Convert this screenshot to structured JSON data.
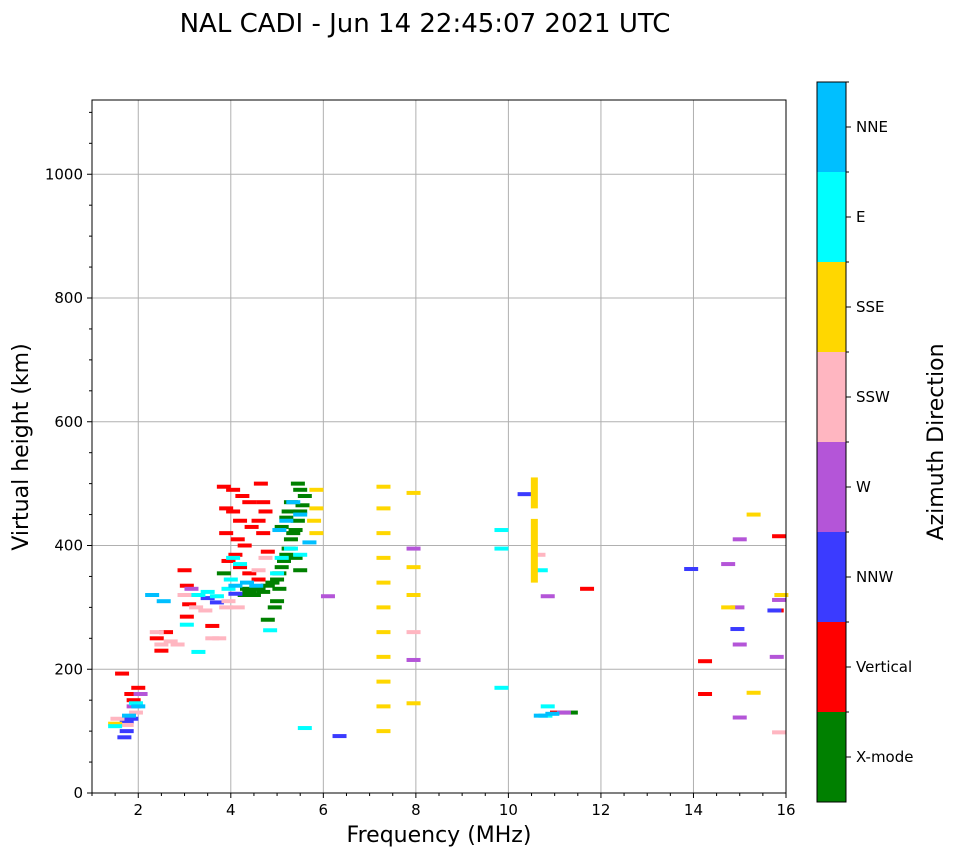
{
  "chart_data": {
    "type": "scatter",
    "title": "NAL CADI - Jun 14 22:45:07 2021 UTC",
    "xlabel": "Frequency (MHz)",
    "ylabel": "Virtual height (km)",
    "xlim": [
      1,
      16
    ],
    "ylim": [
      0,
      1120
    ],
    "xticks": [
      2,
      4,
      6,
      8,
      10,
      12,
      14,
      16
    ],
    "yticks": [
      0,
      200,
      400,
      600,
      800,
      1000
    ],
    "grid": true,
    "colorbar": {
      "label": "Azimuth Direction",
      "categories": [
        {
          "name": "X-mode",
          "color": "#008000"
        },
        {
          "name": "Vertical",
          "color": "#ff0000"
        },
        {
          "name": "NNW",
          "color": "#3b3bff"
        },
        {
          "name": "W",
          "color": "#b455d8"
        },
        {
          "name": "SSW",
          "color": "#ffb6c1"
        },
        {
          "name": "SSE",
          "color": "#ffd700"
        },
        {
          "name": "E",
          "color": "#00ffff"
        },
        {
          "name": "NNE",
          "color": "#00bfff"
        }
      ]
    },
    "series": [
      {
        "name": "X-mode",
        "points": [
          [
            4.3,
            320
          ],
          [
            4.35,
            330
          ],
          [
            4.4,
            325
          ],
          [
            4.5,
            320
          ],
          [
            4.6,
            330
          ],
          [
            4.7,
            325
          ],
          [
            4.8,
            335
          ],
          [
            4.9,
            340
          ],
          [
            5.0,
            345
          ],
          [
            5.05,
            355
          ],
          [
            5.1,
            365
          ],
          [
            5.15,
            375
          ],
          [
            5.2,
            385
          ],
          [
            5.25,
            395
          ],
          [
            5.3,
            410
          ],
          [
            5.35,
            420
          ],
          [
            5.4,
            425
          ],
          [
            5.45,
            440
          ],
          [
            5.5,
            455
          ],
          [
            5.55,
            465
          ],
          [
            5.6,
            480
          ],
          [
            5.45,
            500
          ],
          [
            5.5,
            490
          ],
          [
            5.3,
            470
          ],
          [
            5.25,
            455
          ],
          [
            5.2,
            445
          ],
          [
            5.1,
            430
          ],
          [
            5.5,
            360
          ],
          [
            5.4,
            380
          ],
          [
            4.95,
            300
          ],
          [
            4.8,
            280
          ],
          [
            11.35,
            130
          ],
          [
            3.85,
            355
          ],
          [
            5.05,
            330
          ],
          [
            5.0,
            310
          ]
        ]
      },
      {
        "name": "Vertical",
        "points": [
          [
            1.65,
            193
          ],
          [
            1.85,
            160
          ],
          [
            1.9,
            150
          ],
          [
            2.0,
            170
          ],
          [
            2.4,
            250
          ],
          [
            2.5,
            230
          ],
          [
            2.6,
            260
          ],
          [
            3.0,
            360
          ],
          [
            3.05,
            335
          ],
          [
            3.1,
            305
          ],
          [
            3.05,
            285
          ],
          [
            3.6,
            270
          ],
          [
            3.85,
            495
          ],
          [
            4.05,
            490
          ],
          [
            4.25,
            480
          ],
          [
            4.4,
            470
          ],
          [
            3.9,
            460
          ],
          [
            4.05,
            455
          ],
          [
            4.2,
            440
          ],
          [
            4.45,
            430
          ],
          [
            3.9,
            420
          ],
          [
            4.15,
            410
          ],
          [
            4.3,
            400
          ],
          [
            4.1,
            385
          ],
          [
            3.95,
            375
          ],
          [
            4.2,
            365
          ],
          [
            4.4,
            355
          ],
          [
            4.6,
            345
          ],
          [
            4.65,
            500
          ],
          [
            4.7,
            470
          ],
          [
            4.75,
            455
          ],
          [
            4.6,
            440
          ],
          [
            4.7,
            420
          ],
          [
            4.8,
            390
          ],
          [
            11.05,
            130
          ],
          [
            11.7,
            330
          ],
          [
            14.25,
            213
          ],
          [
            14.25,
            160
          ],
          [
            15.85,
            415
          ],
          [
            15.8,
            295
          ]
        ]
      },
      {
        "name": "NNW",
        "points": [
          [
            1.75,
            115
          ],
          [
            1.75,
            100
          ],
          [
            1.7,
            90
          ],
          [
            1.85,
            120
          ],
          [
            3.5,
            315
          ],
          [
            3.7,
            308
          ],
          [
            4.1,
            322
          ],
          [
            6.35,
            92
          ],
          [
            10.35,
            483
          ],
          [
            13.95,
            362
          ],
          [
            14.95,
            265
          ],
          [
            15.75,
            295
          ]
        ]
      },
      {
        "name": "W",
        "points": [
          [
            1.9,
            140
          ],
          [
            2.05,
            160
          ],
          [
            3.15,
            330
          ],
          [
            6.1,
            318
          ],
          [
            7.95,
            395
          ],
          [
            7.95,
            215
          ],
          [
            10.85,
            318
          ],
          [
            14.75,
            370
          ],
          [
            15.0,
            410
          ],
          [
            14.95,
            300
          ],
          [
            15.0,
            240
          ],
          [
            15.0,
            122
          ],
          [
            15.8,
            220
          ],
          [
            15.85,
            312
          ],
          [
            11.2,
            130
          ]
        ]
      },
      {
        "name": "SSW",
        "points": [
          [
            1.55,
            120
          ],
          [
            1.75,
            110
          ],
          [
            1.95,
            130
          ],
          [
            2.4,
            260
          ],
          [
            2.5,
            240
          ],
          [
            2.7,
            245
          ],
          [
            2.85,
            240
          ],
          [
            3.0,
            320
          ],
          [
            3.25,
            300
          ],
          [
            3.45,
            295
          ],
          [
            3.6,
            250
          ],
          [
            3.75,
            250
          ],
          [
            3.95,
            310
          ],
          [
            3.9,
            300
          ],
          [
            4.15,
            300
          ],
          [
            4.6,
            360
          ],
          [
            4.75,
            380
          ],
          [
            10.65,
            385
          ],
          [
            7.95,
            260
          ],
          [
            15.85,
            98
          ]
        ]
      },
      {
        "name": "SSE",
        "points": [
          [
            5.85,
            490
          ],
          [
            5.85,
            460
          ],
          [
            5.8,
            440
          ],
          [
            5.85,
            420
          ],
          [
            7.3,
            495
          ],
          [
            7.3,
            460
          ],
          [
            7.3,
            420
          ],
          [
            7.3,
            380
          ],
          [
            7.3,
            340
          ],
          [
            7.3,
            300
          ],
          [
            7.3,
            260
          ],
          [
            7.3,
            220
          ],
          [
            7.3,
            180
          ],
          [
            7.3,
            140
          ],
          [
            7.3,
            100
          ],
          [
            7.95,
            485
          ],
          [
            7.95,
            365
          ],
          [
            7.95,
            320
          ],
          [
            7.95,
            145
          ],
          [
            14.75,
            300
          ],
          [
            15.3,
            450
          ],
          [
            15.3,
            162
          ],
          [
            15.9,
            320
          ],
          [
            1.5,
            112
          ]
        ]
      },
      {
        "name": "E",
        "points": [
          [
            3.3,
            320
          ],
          [
            3.5,
            325
          ],
          [
            3.7,
            318
          ],
          [
            3.95,
            330
          ],
          [
            4.0,
            345
          ],
          [
            4.05,
            380
          ],
          [
            4.2,
            370
          ],
          [
            5.0,
            355
          ],
          [
            5.1,
            380
          ],
          [
            5.3,
            395
          ],
          [
            5.5,
            385
          ],
          [
            5.6,
            105
          ],
          [
            4.85,
            263
          ],
          [
            3.05,
            272
          ],
          [
            3.3,
            228
          ],
          [
            9.85,
            425
          ],
          [
            9.85,
            395
          ],
          [
            9.85,
            170
          ],
          [
            10.7,
            360
          ],
          [
            10.85,
            140
          ],
          [
            10.8,
            125
          ],
          [
            1.5,
            108
          ],
          [
            1.95,
            145
          ]
        ]
      },
      {
        "name": "NNE",
        "points": [
          [
            2.3,
            320
          ],
          [
            2.55,
            310
          ],
          [
            4.1,
            335
          ],
          [
            4.35,
            340
          ],
          [
            4.55,
            335
          ],
          [
            5.05,
            425
          ],
          [
            5.2,
            440
          ],
          [
            5.35,
            470
          ],
          [
            5.5,
            450
          ],
          [
            5.7,
            405
          ],
          [
            10.7,
            125
          ],
          [
            10.95,
            128
          ],
          [
            1.8,
            125
          ],
          [
            2.0,
            140
          ]
        ]
      }
    ],
    "bars": [
      {
        "name": "SSE",
        "x": 10.55,
        "y_from": 460,
        "y_to": 510
      },
      {
        "name": "SSE",
        "x": 10.55,
        "y_from": 340,
        "y_to": 443
      }
    ]
  }
}
